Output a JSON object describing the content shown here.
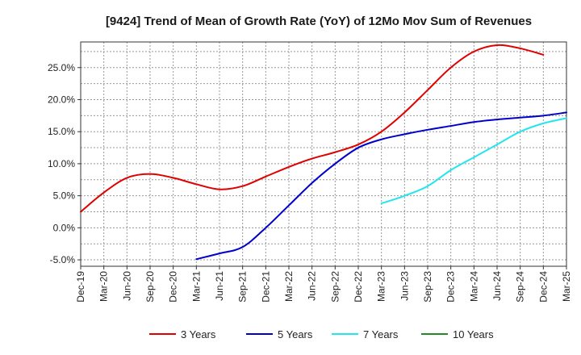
{
  "chart_data": {
    "type": "line",
    "title": "[9424]  Trend of Mean of Growth Rate (YoY) of 12Mo Mov Sum of Revenues",
    "xlabel": "",
    "ylabel": "",
    "x_ticks": [
      "Dec-19",
      "Mar-20",
      "Jun-20",
      "Sep-20",
      "Dec-20",
      "Mar-21",
      "Jun-21",
      "Sep-21",
      "Dec-21",
      "Mar-22",
      "Jun-22",
      "Sep-22",
      "Dec-22",
      "Mar-23",
      "Jun-23",
      "Sep-23",
      "Dec-23",
      "Mar-24",
      "Jun-24",
      "Sep-24",
      "Dec-24",
      "Mar-25"
    ],
    "y_ticks": [
      -5,
      0,
      5,
      10,
      15,
      20,
      25
    ],
    "y_tick_labels": [
      "-5.0%",
      "0.0%",
      "5.0%",
      "10.0%",
      "15.0%",
      "20.0%",
      "25.0%"
    ],
    "ylim": [
      -6,
      29
    ],
    "grid": true,
    "legend_position": "bottom",
    "series": [
      {
        "name": "3 Years",
        "color": "#e00000",
        "start_index": 0,
        "values": [
          2.5,
          5.5,
          7.8,
          8.4,
          7.8,
          6.8,
          6.0,
          6.5,
          8.0,
          9.5,
          10.8,
          11.8,
          13.0,
          15.0,
          18.0,
          21.5,
          25.0,
          27.5,
          28.5,
          28.0,
          27.0
        ]
      },
      {
        "name": "5 Years",
        "color": "#0000cc",
        "start_index": 5,
        "values": [
          -4.9,
          -4.0,
          -3.0,
          0.0,
          3.5,
          7.0,
          10.0,
          12.5,
          13.8,
          14.6,
          15.3,
          15.9,
          16.5,
          16.9,
          17.2,
          17.5,
          18.0
        ]
      },
      {
        "name": "7 Years",
        "color": "#22e5ee",
        "start_index": 13,
        "values": [
          3.8,
          5.0,
          6.5,
          9.0,
          11.0,
          13.0,
          15.0,
          16.3,
          17.1
        ]
      },
      {
        "name": "10 Years",
        "color": "#228b22",
        "start_index": 0,
        "values": []
      }
    ]
  }
}
